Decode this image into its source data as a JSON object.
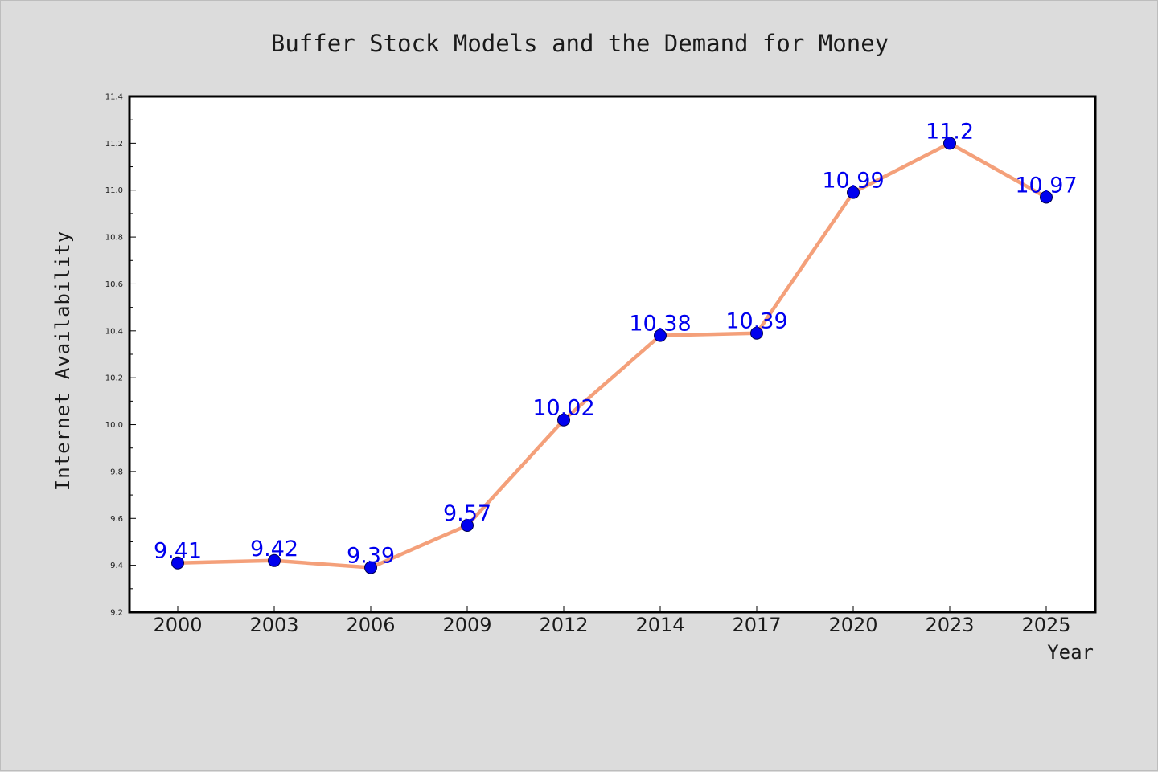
{
  "chart_data": {
    "type": "line",
    "title": "Buffer Stock Models and the Demand for Money",
    "xlabel": "Year",
    "ylabel": "Internet Availability",
    "categories": [
      "2000",
      "2003",
      "2006",
      "2009",
      "2012",
      "2014",
      "2017",
      "2020",
      "2023",
      "2025"
    ],
    "series": [
      {
        "values": [
          9.41,
          9.42,
          9.39,
          9.57,
          10.02,
          10.38,
          10.39,
          10.99,
          11.2,
          10.97
        ],
        "data_labels": [
          "9.41",
          "9.42",
          "9.39",
          "9.57",
          "10.02",
          "10.38",
          "10.39",
          "10.99",
          "11.2",
          "10.97"
        ]
      }
    ],
    "ylim": [
      9.2,
      11.4
    ],
    "yticks": [
      "9.2",
      "9.4",
      "9.6",
      "9.8",
      "10.0",
      "10.2",
      "10.4",
      "10.6",
      "10.8",
      "11.0",
      "11.2",
      "11.4"
    ],
    "grid": false,
    "legend": "none",
    "colors": {
      "line": "#f4a07a",
      "marker": "#0000ee",
      "data_label": "#0000ee",
      "background": "#dcdcdc",
      "plot_area": "#ffffff"
    }
  }
}
